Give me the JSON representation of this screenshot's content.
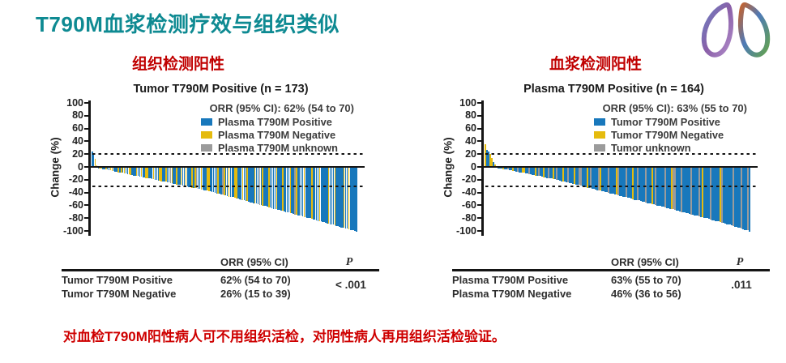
{
  "slide": {
    "title": "T790M血浆检测疗效与组织类似",
    "footnote": "对血检T790M阳性病人可不用组织活检，对阴性病人再用组织活检验证。"
  },
  "panels": [
    {
      "section_label": "组织检测阳性"
    },
    {
      "section_label": "血浆检测阳性"
    }
  ],
  "colors": {
    "b": "#1878BC",
    "y": "#E5BB0E",
    "g": "#9B9B9B",
    "title_teal": "#0E8A92",
    "label_red": "#C00000",
    "axis_black": "#151515"
  },
  "chart_data": [
    {
      "type": "bar",
      "title": "Tumor T790M Positive (n = 173)",
      "orr": "ORR (95% CI): 62% (54 to 70)",
      "ylabel": "Change (%)",
      "xlabel": "",
      "ylim": [
        -100,
        100
      ],
      "yticks": [
        100,
        80,
        60,
        40,
        20,
        0,
        -20,
        -40,
        -60,
        -80,
        -100
      ],
      "reference_lines": [
        20,
        -30
      ],
      "grid": false,
      "legend_position": "top-right",
      "legend": [
        {
          "label": "Plasma T790M Positive",
          "color": "#1878BC"
        },
        {
          "label": "Plasma T790M Negative",
          "color": "#E5BB0E"
        },
        {
          "label": "Plasma T790M unknown",
          "color": "#9B9B9B"
        }
      ],
      "n": 173,
      "values": [
        24,
        21,
        13,
        3,
        0,
        -1,
        -1,
        -2,
        -2,
        -3,
        -3,
        -4,
        -4,
        -5,
        -5,
        -6,
        -6,
        -7,
        -7,
        -8,
        -8,
        -9,
        -9,
        -10,
        -10,
        -11,
        -11,
        -12,
        -12,
        -13,
        -13,
        -14,
        -14,
        -15,
        -15,
        -16,
        -16,
        -17,
        -17,
        -18,
        -18,
        -19,
        -19,
        -20,
        -20,
        -21,
        -21,
        -22,
        -22,
        -23,
        -23,
        -24,
        -24,
        -25,
        -25,
        -26,
        -26,
        -27,
        -27,
        -28,
        -28,
        -29,
        -29,
        -30,
        -30,
        -31,
        -31,
        -32,
        -32,
        -33,
        -33,
        -34,
        -34,
        -35,
        -35,
        -36,
        -37,
        -37,
        -38,
        -38,
        -39,
        -40,
        -40,
        -41,
        -42,
        -42,
        -43,
        -43,
        -44,
        -45,
        -45,
        -46,
        -46,
        -47,
        -48,
        -48,
        -49,
        -50,
        -50,
        -51,
        -52,
        -52,
        -53,
        -54,
        -54,
        -55,
        -56,
        -56,
        -57,
        -58,
        -58,
        -59,
        -60,
        -60,
        -61,
        -62,
        -62,
        -63,
        -64,
        -64,
        -65,
        -66,
        -66,
        -67,
        -67,
        -68,
        -69,
        -69,
        -70,
        -71,
        -71,
        -72,
        -73,
        -73,
        -74,
        -75,
        -75,
        -76,
        -77,
        -77,
        -78,
        -79,
        -79,
        -80,
        -81,
        -81,
        -82,
        -83,
        -83,
        -84,
        -85,
        -85,
        -86,
        -87,
        -87,
        -88,
        -89,
        -89,
        -90,
        -91,
        -91,
        -92,
        -93,
        -93,
        -94,
        -95,
        -95,
        -96,
        -97,
        -97,
        -98,
        -99,
        -100
      ],
      "bar_colors": "bbyybyybbybbyybbbybybybbyybbbybbybbyybbbybbbyybbybbgybbybbybbybbbybygbbybbbyybbbbbybbgybbybbbyybbbybbybbbbybbgbybbbybbbbybbbybbbbybbgybbbbybbbbybbbbybbbbbybbbybbbbbybbybbbbb",
      "table": {
        "col_header": "ORR (95% CI)",
        "p_header": "P",
        "rows": [
          [
            "Tumor T790M Positive",
            "62% (54 to 70)"
          ],
          [
            "Tumor T790M Negative",
            "26% (15 to 39)"
          ]
        ],
        "p_value": "< .001"
      }
    },
    {
      "type": "bar",
      "title": "Plasma T790M Positive (n = 164)",
      "orr": "ORR (95% CI): 63% (55 to 70)",
      "ylabel": "Change (%)",
      "xlabel": "",
      "ylim": [
        -100,
        100
      ],
      "yticks": [
        100,
        80,
        60,
        40,
        20,
        0,
        -20,
        -40,
        -60,
        -80,
        -100
      ],
      "reference_lines": [
        20,
        -30
      ],
      "grid": false,
      "legend_position": "top-right",
      "legend": [
        {
          "label": "Tumor T790M Positive",
          "color": "#1878BC"
        },
        {
          "label": "Tumor T790M Negative",
          "color": "#E5BB0E"
        },
        {
          "label": "Tumor unknown",
          "color": "#9B9B9B"
        }
      ],
      "n": 164,
      "values": [
        35,
        27,
        24,
        20,
        14,
        8,
        4,
        1,
        0,
        -1,
        -1,
        -2,
        -2,
        -3,
        -3,
        -4,
        -4,
        -5,
        -5,
        -6,
        -6,
        -7,
        -7,
        -8,
        -8,
        -9,
        -9,
        -10,
        -10,
        -11,
        -11,
        -12,
        -12,
        -13,
        -13,
        -14,
        -15,
        -15,
        -16,
        -16,
        -17,
        -17,
        -18,
        -18,
        -19,
        -19,
        -20,
        -21,
        -21,
        -22,
        -23,
        -23,
        -24,
        -24,
        -25,
        -25,
        -26,
        -27,
        -27,
        -28,
        -29,
        -29,
        -30,
        -31,
        -31,
        -32,
        -33,
        -33,
        -34,
        -35,
        -35,
        -36,
        -37,
        -37,
        -38,
        -38,
        -39,
        -40,
        -40,
        -41,
        -42,
        -42,
        -43,
        -44,
        -44,
        -45,
        -45,
        -46,
        -47,
        -47,
        -48,
        -49,
        -50,
        -50,
        -51,
        -51,
        -52,
        -53,
        -53,
        -54,
        -55,
        -55,
        -56,
        -57,
        -57,
        -58,
        -59,
        -59,
        -60,
        -61,
        -61,
        -62,
        -63,
        -63,
        -64,
        -64,
        -65,
        -66,
        -67,
        -67,
        -68,
        -69,
        -69,
        -70,
        -71,
        -71,
        -72,
        -73,
        -73,
        -74,
        -75,
        -75,
        -76,
        -77,
        -77,
        -78,
        -79,
        -79,
        -80,
        -81,
        -82,
        -82,
        -83,
        -84,
        -84,
        -85,
        -86,
        -86,
        -87,
        -88,
        -89,
        -89,
        -90,
        -91,
        -92,
        -92,
        -94,
        -94,
        -95,
        -96,
        -97,
        -97,
        -98,
        -100
      ],
      "bar_colors": "ybbyybybbbbybbgbbybbgbbyybbgbbbybgbbybbgbbybgbbbybbgbbbybbggbbbybgbbbbgybbbbgbbbbygbbbbgbbbybbgbbbbgbbbybgbbbbbgbbbyggbbbgbbbbbgbbbbgbybbbbgbbbbbygbbbbbbgbbbbgbbbgb",
      "table": {
        "col_header": "ORR (95% CI)",
        "p_header": "P",
        "rows": [
          [
            "Plasma T790M Positive",
            "63% (55 to 70)"
          ],
          [
            "Plasma T790M Negative",
            "46% (36 to 56)"
          ]
        ],
        "p_value": ".011"
      }
    }
  ]
}
